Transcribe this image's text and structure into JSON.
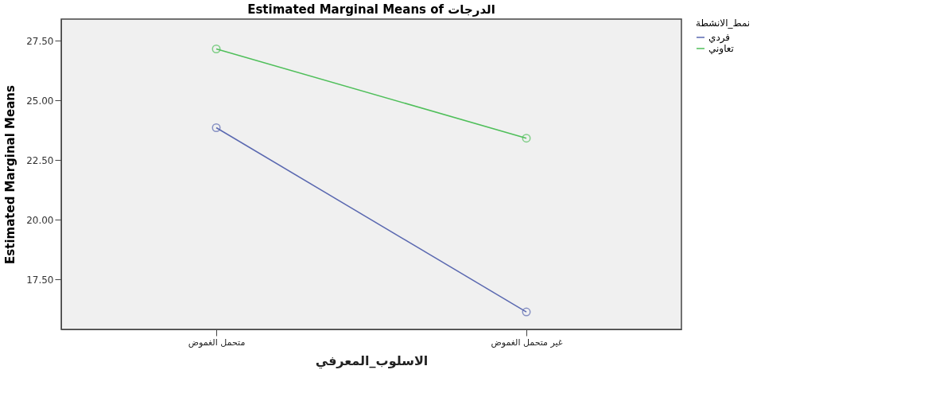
{
  "chart_data": {
    "type": "line",
    "title": "Estimated Marginal Means of الدرجات",
    "xlabel": "الاسلوب_المعرفي",
    "ylabel": "Estimated Marginal Means",
    "legend_title": "نمط_الانشطة",
    "categories": [
      "متحمل الغموض",
      "غير متحمل الغموض"
    ],
    "series": [
      {
        "name": "فردي",
        "color": "#5a68b0",
        "values": [
          23.85,
          16.13
        ]
      },
      {
        "name": "تعاوني",
        "color": "#4fbf5a",
        "values": [
          27.15,
          23.41
        ]
      }
    ],
    "ylim": [
      15.4,
      28.4
    ],
    "yticks": [
      {
        "value": 17.5,
        "label": "17.50"
      },
      {
        "value": 20,
        "label": "20.00"
      },
      {
        "value": 22.5,
        "label": "22.50"
      },
      {
        "value": 25,
        "label": "25.00"
      },
      {
        "value": 27.5,
        "label": "27.50"
      }
    ],
    "grid": false,
    "legend": "top right",
    "marker": "circle",
    "line_style": "solid"
  }
}
